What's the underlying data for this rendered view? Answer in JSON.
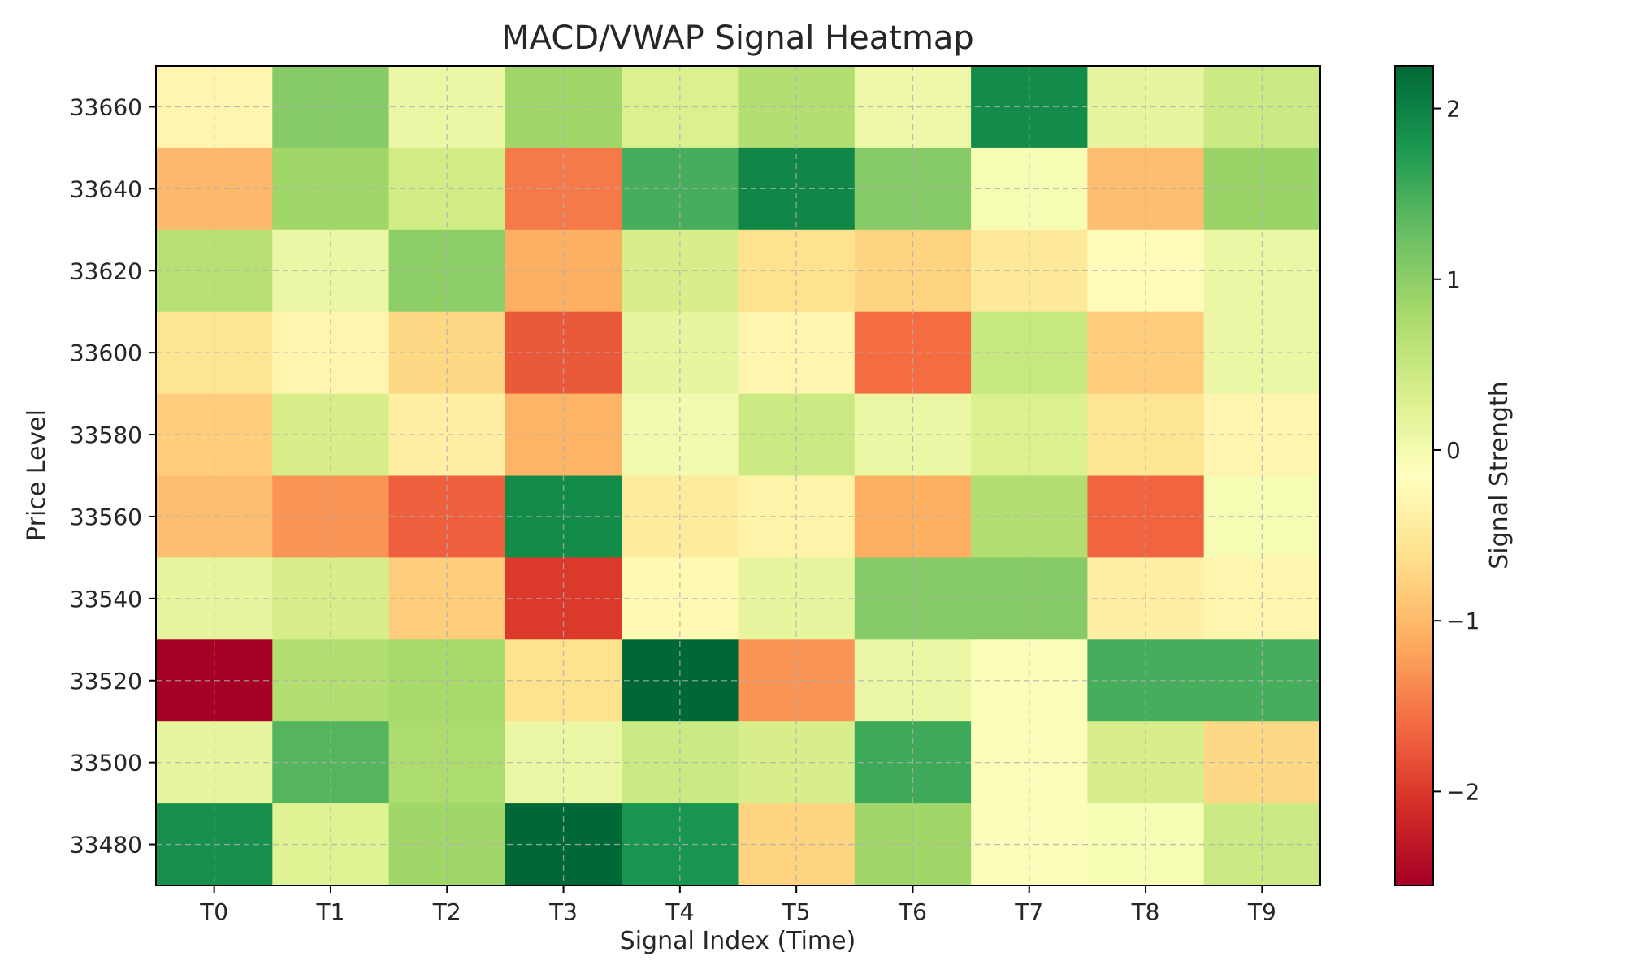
{
  "chart_data": {
    "type": "heatmap",
    "title": "MACD/VWAP Signal Heatmap",
    "xlabel": "Signal Index (Time)",
    "ylabel": "Price Level",
    "x_categories": [
      "T0",
      "T1",
      "T2",
      "T3",
      "T4",
      "T5",
      "T6",
      "T7",
      "T8",
      "T9"
    ],
    "y_categories_top_to_bottom": [
      "33660",
      "33640",
      "33620",
      "33600",
      "33580",
      "33560",
      "33540",
      "33520",
      "33500",
      "33480"
    ],
    "values_top_to_bottom": [
      [
        -0.3,
        1.05,
        0.1,
        0.85,
        0.3,
        0.7,
        0.05,
        1.9,
        0.15,
        0.45
      ],
      [
        -1.0,
        0.85,
        0.4,
        -1.5,
        1.5,
        1.95,
        1.05,
        -0.05,
        -0.95,
        0.9
      ],
      [
        0.65,
        0.1,
        1.0,
        -1.1,
        0.35,
        -0.6,
        -0.75,
        -0.5,
        -0.2,
        0.1
      ],
      [
        -0.55,
        -0.3,
        -0.7,
        -1.75,
        0.15,
        -0.3,
        -1.6,
        0.5,
        -0.8,
        0.1
      ],
      [
        -0.8,
        0.35,
        -0.4,
        -1.05,
        0.0,
        0.45,
        0.1,
        0.3,
        -0.55,
        -0.3
      ],
      [
        -0.95,
        -1.3,
        -1.7,
        1.9,
        -0.45,
        -0.35,
        -1.1,
        0.7,
        -1.65,
        -0.05
      ],
      [
        0.15,
        0.35,
        -0.8,
        -2.0,
        -0.25,
        0.15,
        1.05,
        1.05,
        -0.4,
        -0.3
      ],
      [
        -2.55,
        0.7,
        0.8,
        -0.6,
        2.25,
        -1.3,
        0.1,
        -0.1,
        1.5,
        1.5
      ],
      [
        0.15,
        1.4,
        0.75,
        0.1,
        0.45,
        0.35,
        1.55,
        -0.1,
        0.35,
        -0.7
      ],
      [
        1.85,
        0.25,
        0.85,
        2.25,
        1.8,
        -0.75,
        0.85,
        -0.1,
        -0.05,
        0.45
      ]
    ],
    "vmin": -2.55,
    "vmax": 2.25,
    "colormap": "RdYlGn",
    "colorbar": {
      "label": "Signal Strength",
      "ticks": [
        "−2",
        "−1",
        "0",
        "1",
        "2"
      ],
      "tick_values": [
        -2,
        -1,
        0,
        1,
        2
      ]
    },
    "grid": true,
    "grid_color": "#b0b0b0",
    "legend": "none"
  }
}
